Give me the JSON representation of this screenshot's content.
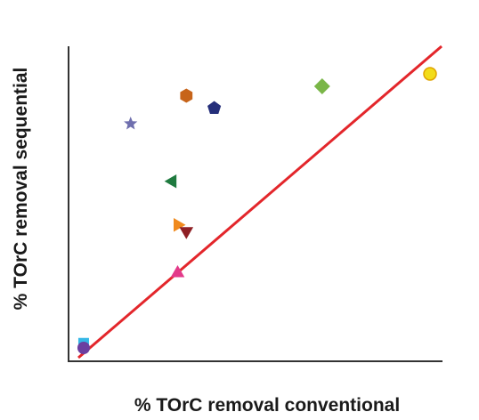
{
  "chart_data": {
    "type": "scatter",
    "xlabel": "% TOrC removal conventional",
    "ylabel": "% TOrC removal sequential",
    "xlim": [
      0,
      100
    ],
    "ylim": [
      0,
      100
    ],
    "grid": false,
    "reference_line": {
      "x": [
        0,
        100
      ],
      "y": [
        0,
        100
      ],
      "color": "#e3262b"
    },
    "points": [
      {
        "x": 0.5,
        "y": 3.5,
        "marker": "square",
        "color": "#35b7e6"
      },
      {
        "x": 0.5,
        "y": 2.0,
        "marker": "circle",
        "color": "#6b3fa0"
      },
      {
        "x": 27.5,
        "y": 26.0,
        "marker": "triangle-up",
        "color": "#e33a8a"
      },
      {
        "x": 27.5,
        "y": 41.5,
        "marker": "triangle-right",
        "color": "#f08a1e"
      },
      {
        "x": 30.0,
        "y": 39.5,
        "marker": "triangle-down",
        "color": "#8f1f24"
      },
      {
        "x": 26.0,
        "y": 55.5,
        "marker": "triangle-left",
        "color": "#1f7a3f"
      },
      {
        "x": 14.0,
        "y": 74.0,
        "marker": "star",
        "color": "#6f6fae"
      },
      {
        "x": 30.0,
        "y": 83.0,
        "marker": "hexagon",
        "color": "#c7641a"
      },
      {
        "x": 38.0,
        "y": 79.0,
        "marker": "pentagon",
        "color": "#252f7a"
      },
      {
        "x": 69.0,
        "y": 86.0,
        "marker": "diamond",
        "color": "#7ab648"
      },
      {
        "x": 100.0,
        "y": 90.0,
        "marker": "circle",
        "color": "#f2dc1a"
      }
    ]
  }
}
